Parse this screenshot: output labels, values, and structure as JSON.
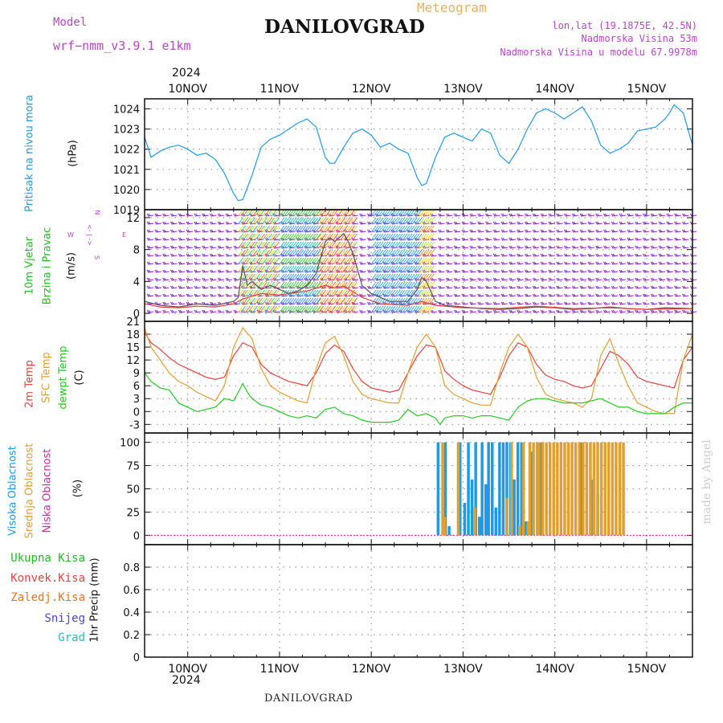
{
  "header": {
    "model_label": "Model",
    "model_name": "wrf−nmm_v3.9.1 e1km",
    "station": "DANILOVGRAD",
    "product": "Meteogram",
    "coords": "lon,lat (19.1875E, 42.5N)",
    "elevation": "Nadmorska Visina 53m",
    "model_elevation": "Nadmorska Visina u modelu 67.9978m",
    "year": "2024",
    "footer_station": "DANILOVGRAD",
    "credit": "made by Angel"
  },
  "colors": {
    "pressure": "#1e9be6",
    "wind_title": "#22bb22",
    "compass": "#bb44cc",
    "temp2m": "#e8413c",
    "sfc": "#e0a030",
    "dew": "#22cc22",
    "cloud_high": "#1e9be6",
    "cloud_mid": "#e0a030",
    "cloud_low": "#dd22aa",
    "precip_total": "#22bb22",
    "precip_conv": "#e8413c",
    "precip_frz": "#f07020",
    "snow": "#4444dd",
    "hail": "#22bbbb",
    "credit": "#cccccc"
  },
  "chart_data": [
    {
      "type": "line",
      "panel": "pressure",
      "ylabel": "Pritisak na nivou mora",
      "unit": "(hPa)",
      "x_ticks": [
        "10NOV",
        "11NOV",
        "12NOV",
        "13NOV",
        "14NOV",
        "15NOV"
      ],
      "x_range_days": [
        9.53,
        15.5
      ],
      "ylim": [
        1019,
        1024.5
      ],
      "yticks": [
        1019,
        1020,
        1021,
        1022,
        1023,
        1024
      ],
      "grid": true,
      "series": [
        {
          "color_key": "pressure",
          "x": [
            9.53,
            9.6,
            9.7,
            9.8,
            9.9,
            10.0,
            10.1,
            10.2,
            10.3,
            10.4,
            10.5,
            10.55,
            10.6,
            10.7,
            10.8,
            10.9,
            11.0,
            11.1,
            11.2,
            11.3,
            11.4,
            11.5,
            11.55,
            11.6,
            11.7,
            11.8,
            11.9,
            12.0,
            12.1,
            12.2,
            12.3,
            12.4,
            12.5,
            12.55,
            12.6,
            12.7,
            12.8,
            12.9,
            13.0,
            13.1,
            13.2,
            13.3,
            13.4,
            13.5,
            13.6,
            13.7,
            13.8,
            13.9,
            14.0,
            14.1,
            14.2,
            14.3,
            14.4,
            14.5,
            14.6,
            14.7,
            14.8,
            14.9,
            15.0,
            15.1,
            15.2,
            15.25,
            15.3,
            15.4,
            15.5
          ],
          "y": [
            1022.6,
            1021.6,
            1021.9,
            1022.1,
            1022.2,
            1022.0,
            1021.7,
            1021.8,
            1021.5,
            1020.8,
            1019.8,
            1019.45,
            1019.5,
            1020.7,
            1022.1,
            1022.5,
            1022.7,
            1023.0,
            1023.3,
            1023.5,
            1023.1,
            1021.6,
            1021.3,
            1021.3,
            1022.1,
            1022.8,
            1023.0,
            1022.7,
            1022.1,
            1022.3,
            1022.0,
            1021.8,
            1020.6,
            1020.2,
            1020.3,
            1021.6,
            1022.6,
            1022.8,
            1022.6,
            1022.4,
            1023.0,
            1022.8,
            1021.7,
            1021.3,
            1022.0,
            1023.0,
            1023.8,
            1024.0,
            1023.8,
            1023.5,
            1023.8,
            1024.1,
            1023.4,
            1022.2,
            1021.8,
            1022.0,
            1022.3,
            1022.9,
            1023.0,
            1023.1,
            1023.5,
            1023.8,
            1024.2,
            1023.8,
            1022.2
          ]
        }
      ]
    },
    {
      "type": "line",
      "panel": "wind",
      "ylabel": "10m Vjetar Brzina i Pravac",
      "ylabel_lines": [
        "10m Vjetar",
        "Brzina i Pravac"
      ],
      "unit": "(m/s)",
      "compass": {
        "n": "N",
        "s": "S",
        "e": "E",
        "w": "W",
        "arrow": "<- | ->"
      },
      "ylim": [
        -1,
        13
      ],
      "yticks": [
        0,
        4,
        8,
        12
      ],
      "grid": true,
      "series": [
        {
          "name": "speed",
          "color": "#555555",
          "x": [
            9.53,
            9.7,
            9.9,
            10.1,
            10.3,
            10.5,
            10.55,
            10.6,
            10.65,
            10.7,
            10.8,
            10.9,
            11.0,
            11.1,
            11.2,
            11.3,
            11.4,
            11.45,
            11.5,
            11.55,
            11.6,
            11.65,
            11.7,
            11.75,
            11.8,
            11.9,
            12.0,
            12.2,
            12.4,
            12.5,
            12.55,
            12.6,
            12.7,
            12.8,
            13.0,
            13.2,
            13.4,
            13.6,
            13.8,
            14.0,
            14.2,
            14.4,
            14.6,
            14.8,
            15.0,
            15.2,
            15.5
          ],
          "y": [
            1.5,
            1.0,
            0.8,
            1.2,
            1.0,
            1.5,
            2.0,
            6.0,
            3.5,
            4.0,
            3.0,
            3.5,
            3.0,
            2.5,
            2.8,
            3.5,
            5.0,
            7.0,
            9.0,
            9.5,
            9.0,
            9.5,
            10.0,
            9.0,
            7.5,
            3.5,
            2.5,
            1.5,
            1.5,
            3.0,
            4.5,
            4.0,
            1.5,
            1.0,
            0.8,
            0.6,
            0.5,
            0.6,
            0.8,
            0.7,
            0.5,
            0.6,
            0.8,
            0.6,
            0.5,
            0.7,
            0.6
          ]
        },
        {
          "name": "gust",
          "color": "#e8413c",
          "x": [
            9.53,
            9.7,
            9.9,
            10.1,
            10.3,
            10.5,
            10.6,
            10.8,
            11.0,
            11.3,
            11.5,
            11.6,
            11.7,
            11.9,
            12.1,
            12.4,
            12.55,
            12.7,
            13.0,
            13.4,
            13.8,
            14.2,
            14.6,
            15.0,
            15.5
          ],
          "y": [
            1.2,
            0.8,
            0.7,
            0.9,
            0.8,
            1.2,
            1.8,
            2.5,
            2.3,
            2.8,
            3.5,
            3.2,
            3.4,
            2.0,
            1.2,
            1.0,
            1.5,
            1.0,
            0.7,
            0.6,
            0.9,
            0.6,
            0.7,
            0.5,
            0.6
          ]
        }
      ]
    },
    {
      "type": "line",
      "panel": "temperature",
      "ylabel_lines": [
        "2m Temp",
        "SFC Temp",
        "dewpt Temp"
      ],
      "unit": "(C)",
      "ylim": [
        -5,
        21
      ],
      "yticks": [
        -3,
        0,
        3,
        6,
        9,
        12,
        15,
        18,
        21
      ],
      "grid": true,
      "series": [
        {
          "name": "2m Temp",
          "color_key": "temp2m",
          "x": [
            9.53,
            9.6,
            9.7,
            9.8,
            9.9,
            10.0,
            10.1,
            10.2,
            10.3,
            10.4,
            10.5,
            10.6,
            10.7,
            10.8,
            10.9,
            11.0,
            11.1,
            11.2,
            11.3,
            11.4,
            11.5,
            11.6,
            11.7,
            11.8,
            11.9,
            12.0,
            12.1,
            12.2,
            12.3,
            12.4,
            12.5,
            12.6,
            12.7,
            12.8,
            12.9,
            13.0,
            13.1,
            13.2,
            13.3,
            13.4,
            13.5,
            13.6,
            13.7,
            13.8,
            13.9,
            14.0,
            14.1,
            14.2,
            14.3,
            14.4,
            14.5,
            14.6,
            14.7,
            14.8,
            14.9,
            15.0,
            15.1,
            15.2,
            15.3,
            15.4,
            15.5
          ],
          "y": [
            18.5,
            16.0,
            14.5,
            12.5,
            11.0,
            10.0,
            9.0,
            8.0,
            7.5,
            8.0,
            13.0,
            16.0,
            15.0,
            11.0,
            9.0,
            8.0,
            7.0,
            6.5,
            6.0,
            9.0,
            13.5,
            15.5,
            14.0,
            10.0,
            7.0,
            5.5,
            5.0,
            4.5,
            5.0,
            9.0,
            13.0,
            15.5,
            15.0,
            9.5,
            7.5,
            6.0,
            5.0,
            4.5,
            4.0,
            8.0,
            13.0,
            16.0,
            15.0,
            11.0,
            8.5,
            7.5,
            7.0,
            6.0,
            5.5,
            6.0,
            10.0,
            14.0,
            13.0,
            11.0,
            8.0,
            7.0,
            6.5,
            6.0,
            5.5,
            12.0,
            15.0
          ]
        },
        {
          "name": "SFC Temp",
          "color_key": "sfc",
          "x": [
            9.53,
            9.6,
            9.7,
            9.8,
            9.9,
            10.0,
            10.1,
            10.2,
            10.3,
            10.4,
            10.5,
            10.6,
            10.7,
            10.8,
            10.9,
            11.0,
            11.1,
            11.2,
            11.3,
            11.4,
            11.5,
            11.6,
            11.7,
            11.8,
            11.9,
            12.0,
            12.1,
            12.2,
            12.3,
            12.4,
            12.5,
            12.6,
            12.7,
            12.8,
            12.9,
            13.0,
            13.1,
            13.2,
            13.3,
            13.4,
            13.5,
            13.6,
            13.7,
            13.8,
            13.9,
            14.0,
            14.1,
            14.2,
            14.3,
            14.4,
            14.5,
            14.6,
            14.7,
            14.8,
            14.9,
            15.0,
            15.1,
            15.2,
            15.3,
            15.4,
            15.5
          ],
          "y": [
            19.5,
            15.0,
            12.0,
            9.0,
            7.0,
            6.0,
            4.5,
            3.5,
            2.5,
            6.0,
            15.0,
            19.5,
            17.0,
            10.0,
            6.0,
            4.5,
            3.5,
            2.5,
            2.0,
            10.0,
            16.0,
            17.5,
            13.0,
            7.0,
            4.0,
            3.0,
            2.5,
            2.0,
            2.0,
            9.0,
            15.0,
            18.0,
            15.0,
            6.0,
            4.0,
            3.0,
            2.0,
            1.5,
            1.5,
            9.0,
            15.0,
            18.0,
            15.0,
            8.0,
            4.0,
            3.0,
            2.5,
            2.0,
            1.0,
            3.0,
            13.0,
            17.0,
            11.0,
            6.0,
            2.0,
            1.0,
            0.0,
            -0.5,
            -0.5,
            12.0,
            18.0
          ]
        },
        {
          "name": "dewpt Temp",
          "color_key": "dew",
          "x": [
            9.53,
            9.6,
            9.7,
            9.8,
            9.9,
            10.0,
            10.1,
            10.2,
            10.3,
            10.4,
            10.5,
            10.6,
            10.65,
            10.7,
            10.8,
            10.9,
            11.0,
            11.1,
            11.2,
            11.3,
            11.4,
            11.5,
            11.6,
            11.7,
            11.8,
            11.9,
            12.0,
            12.1,
            12.2,
            12.3,
            12.4,
            12.5,
            12.6,
            12.7,
            12.75,
            12.8,
            12.9,
            13.0,
            13.1,
            13.2,
            13.3,
            13.4,
            13.5,
            13.6,
            13.7,
            13.8,
            13.9,
            14.0,
            14.1,
            14.2,
            14.3,
            14.4,
            14.5,
            14.6,
            14.7,
            14.8,
            14.9,
            15.0,
            15.1,
            15.2,
            15.3,
            15.4,
            15.5
          ],
          "y": [
            9.0,
            7.0,
            5.5,
            5.0,
            2.0,
            1.0,
            0.0,
            0.5,
            1.0,
            3.0,
            2.5,
            6.5,
            4.5,
            3.0,
            1.5,
            1.0,
            0.0,
            -1.0,
            -1.5,
            -1.0,
            -1.5,
            0.5,
            1.0,
            -0.5,
            -1.0,
            -2.0,
            -2.5,
            -2.5,
            -2.5,
            -2.0,
            0.5,
            -1.0,
            -0.5,
            -1.5,
            -3.0,
            -1.5,
            -1.0,
            -1.0,
            -1.5,
            -1.0,
            -1.0,
            -1.5,
            -2.0,
            1.0,
            2.5,
            3.0,
            3.0,
            2.5,
            2.0,
            2.0,
            2.0,
            2.5,
            3.0,
            2.0,
            1.0,
            1.0,
            0.0,
            -0.5,
            -0.5,
            -0.5,
            1.0,
            2.0,
            2.0
          ]
        }
      ]
    },
    {
      "type": "bar",
      "panel": "cloud",
      "ylabel_lines": [
        "Visoka Oblacnost",
        "Srednja Oblacnost",
        "Niska  Oblacnost"
      ],
      "unit": "(%)",
      "ylim": [
        -10,
        110
      ],
      "yticks": [
        0,
        25,
        50,
        75,
        100
      ],
      "grid": true,
      "series": [
        {
          "name": "Visoka Oblacnost",
          "color_key": "cloud_high",
          "x": [
            12.73,
            12.81,
            12.85,
            12.97,
            13.02,
            13.06,
            13.1,
            13.14,
            13.18,
            13.21,
            13.25,
            13.28,
            13.32,
            13.36,
            13.4,
            13.44,
            13.48,
            13.52,
            13.56,
            13.6,
            13.64,
            13.68,
            13.75,
            13.85,
            14.3,
            14.4,
            14.47
          ],
          "y": [
            100,
            100,
            10,
            100,
            35,
            100,
            60,
            100,
            20,
            100,
            55,
            100,
            100,
            30,
            100,
            100,
            100,
            100,
            60,
            100,
            100,
            15,
            90,
            100,
            100,
            60,
            45
          ]
        },
        {
          "name": "Srednja Oblacnost",
          "color_key": "cloud_mid",
          "x": [
            12.78,
            12.8,
            12.95,
            13.13,
            13.48,
            13.53,
            13.62,
            13.66,
            13.71,
            13.73,
            13.77,
            13.81,
            13.83,
            13.87,
            13.91,
            13.95,
            13.99,
            14.03,
            14.07,
            14.11,
            14.15,
            14.19,
            14.23,
            14.27,
            14.31,
            14.35,
            14.39,
            14.43,
            14.47,
            14.51,
            14.55,
            14.59,
            14.63,
            14.67,
            14.71,
            14.75
          ],
          "y": [
            100,
            20,
            100,
            30,
            40,
            100,
            10,
            100,
            15,
            100,
            100,
            100,
            100,
            100,
            100,
            100,
            100,
            100,
            100,
            100,
            100,
            100,
            100,
            100,
            100,
            100,
            100,
            100,
            100,
            100,
            100,
            100,
            100,
            100,
            100,
            100
          ]
        },
        {
          "name": "Niska  Oblacnost",
          "color_key": "cloud_low",
          "x": [],
          "y": []
        }
      ]
    },
    {
      "type": "bar",
      "panel": "precip",
      "ylabel": "1hr Precip (mm)",
      "ylim": [
        0,
        1
      ],
      "yticks": [
        "0",
        "0.2",
        "0.4",
        "0.6",
        "0.8"
      ],
      "grid": true,
      "legend": [
        "Ukupna  Kisa",
        "Konvek.Kisa",
        "Zaledj.Kisa",
        "Snijeg",
        "Grad"
      ],
      "series": []
    }
  ]
}
